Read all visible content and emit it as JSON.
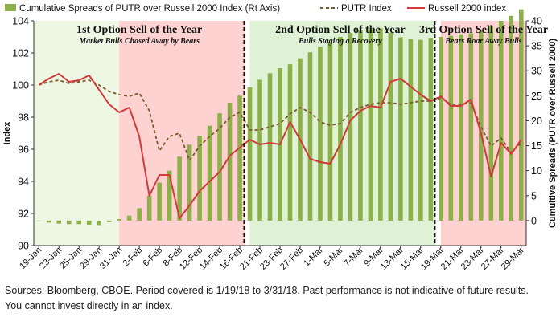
{
  "chart_data": {
    "type": "bar+line",
    "title": "",
    "legend": {
      "position": "top",
      "items": [
        {
          "label": "Cumulative Spreads of PUTR over Russell 2000 Index (Rt Axis)",
          "kind": "bar",
          "color": "#8db04a"
        },
        {
          "label": "PUTR Index",
          "kind": "dashed-line",
          "color": "#7a5a2e"
        },
        {
          "label": "Russell 2000 index",
          "kind": "line",
          "color": "#d23a3a"
        }
      ]
    },
    "y_left": {
      "label": "Index",
      "min": 90,
      "max": 104,
      "ticks": [
        90,
        92,
        94,
        96,
        98,
        100,
        102,
        104
      ]
    },
    "y_right": {
      "label": "Cumultive Spreads (PUTR over Russell 2000)",
      "min": -5,
      "max": 40,
      "ticks": [
        0,
        5,
        10,
        15,
        20,
        25,
        30,
        35,
        40
      ]
    },
    "x_tick_labels": [
      "19-Jan",
      "23-Jan",
      "25-Jan",
      "29-Jan",
      "31-Jan",
      "2-Feb",
      "6-Feb",
      "8-Feb",
      "12-Feb",
      "14-Feb",
      "16-Feb",
      "21-Feb",
      "23-Feb",
      "27-Feb",
      "1-Mar",
      "5-Mar",
      "7-Mar",
      "9-Mar",
      "13-Mar",
      "15-Mar",
      "19-Mar",
      "21-Mar",
      "23-Mar",
      "27-Mar",
      "29-Mar"
    ],
    "dates": [
      "19-Jan",
      "22-Jan",
      "23-Jan",
      "24-Jan",
      "25-Jan",
      "26-Jan",
      "29-Jan",
      "30-Jan",
      "31-Jan",
      "1-Feb",
      "2-Feb",
      "5-Feb",
      "6-Feb",
      "7-Feb",
      "8-Feb",
      "9-Feb",
      "12-Feb",
      "13-Feb",
      "14-Feb",
      "15-Feb",
      "16-Feb",
      "20-Feb",
      "21-Feb",
      "22-Feb",
      "23-Feb",
      "26-Feb",
      "27-Feb",
      "28-Feb",
      "1-Mar",
      "2-Mar",
      "5-Mar",
      "6-Mar",
      "7-Mar",
      "8-Mar",
      "9-Mar",
      "12-Mar",
      "13-Mar",
      "14-Mar",
      "15-Mar",
      "16-Mar",
      "19-Mar",
      "20-Mar",
      "21-Mar",
      "22-Mar",
      "23-Mar",
      "26-Mar",
      "27-Mar",
      "28-Mar",
      "29-Mar"
    ],
    "series": [
      {
        "name": "Cumulative Spreads of PUTR over Russell 2000 Index (Rt Axis)",
        "axis": "right",
        "type": "bar",
        "values": [
          0,
          -0.4,
          -0.6,
          -0.7,
          -0.7,
          -0.8,
          -0.9,
          -0.3,
          0.3,
          1.0,
          2.5,
          5.0,
          7.6,
          10.0,
          12.8,
          15.2,
          17.0,
          19.0,
          21.5,
          23.6,
          25.0,
          26.7,
          28.2,
          29.5,
          30.5,
          31.3,
          32.5,
          33.7,
          34.8,
          35.8,
          36.8,
          37.6,
          38.2,
          38.3,
          38.5,
          37.6,
          36.7,
          36.4,
          36.2,
          36.6,
          36.8,
          37.0,
          37.3,
          37.5,
          38.0,
          39.0,
          40.0,
          41.0,
          42.3
        ]
      },
      {
        "name": "PUTR Index",
        "axis": "left",
        "type": "line",
        "dash": true,
        "values": [
          100.0,
          100.2,
          100.3,
          100.1,
          100.2,
          100.3,
          100.0,
          99.6,
          99.4,
          99.3,
          99.5,
          98.4,
          95.9,
          96.8,
          97.0,
          95.3,
          96.2,
          96.8,
          97.3,
          98.0,
          98.3,
          97.2,
          97.2,
          97.4,
          97.6,
          98.2,
          98.6,
          98.3,
          97.7,
          97.5,
          97.6,
          98.3,
          98.6,
          98.8,
          98.9,
          98.9,
          98.8,
          98.9,
          99.0,
          99.0,
          99.2,
          98.8,
          98.8,
          98.9,
          97.4,
          96.2,
          96.7,
          95.8,
          96.4
        ]
      },
      {
        "name": "Russell 2000 index",
        "axis": "left",
        "type": "line",
        "dash": false,
        "values": [
          100.0,
          100.4,
          100.7,
          100.2,
          100.3,
          100.6,
          99.7,
          98.8,
          98.3,
          98.6,
          96.8,
          93.1,
          94.4,
          94.4,
          91.7,
          92.5,
          93.4,
          94.0,
          94.6,
          95.6,
          96.1,
          96.6,
          96.3,
          96.4,
          96.3,
          97.7,
          96.6,
          95.4,
          95.2,
          95.1,
          96.3,
          97.8,
          98.4,
          98.7,
          98.6,
          100.2,
          100.4,
          99.9,
          99.4,
          99.0,
          99.3,
          98.7,
          98.7,
          99.1,
          97.0,
          94.3,
          96.4,
          95.7,
          96.6
        ]
      }
    ],
    "regions": [
      {
        "title": "1st Option Sell of the Year",
        "subtitle": "Market Bulls Chased Away by Bears",
        "from": "19-Jan",
        "to": "16-Feb",
        "shade": [
          {
            "from": "19-Jan",
            "to": "31-Jan",
            "color": "#eef7e4"
          },
          {
            "from": "31-Jan",
            "to": "16-Feb",
            "color": "#ffd2d2"
          }
        ]
      },
      {
        "title": "2nd Option Sell of the Year",
        "subtitle": "Bulls Staging a Recovery",
        "from": "20-Feb",
        "to": "16-Mar",
        "shade": [
          {
            "from": "20-Feb",
            "to": "16-Mar",
            "color": "#dff2d6"
          }
        ]
      },
      {
        "title": "3rd Option Sell of the Year",
        "subtitle": "Bears Roar Away Bulls",
        "from": "19-Mar",
        "to": "29-Mar",
        "shade": [
          {
            "from": "19-Mar",
            "to": "29-Mar",
            "color": "#ffd2d2"
          }
        ]
      }
    ],
    "grid": false
  },
  "footnote": {
    "line1": "Sources: Bloomberg, CBOE. Period covered is 1/19/18 to 3/31/18. Past performance is not indicative of future results.",
    "line2": "You cannot invest directly in an index."
  }
}
